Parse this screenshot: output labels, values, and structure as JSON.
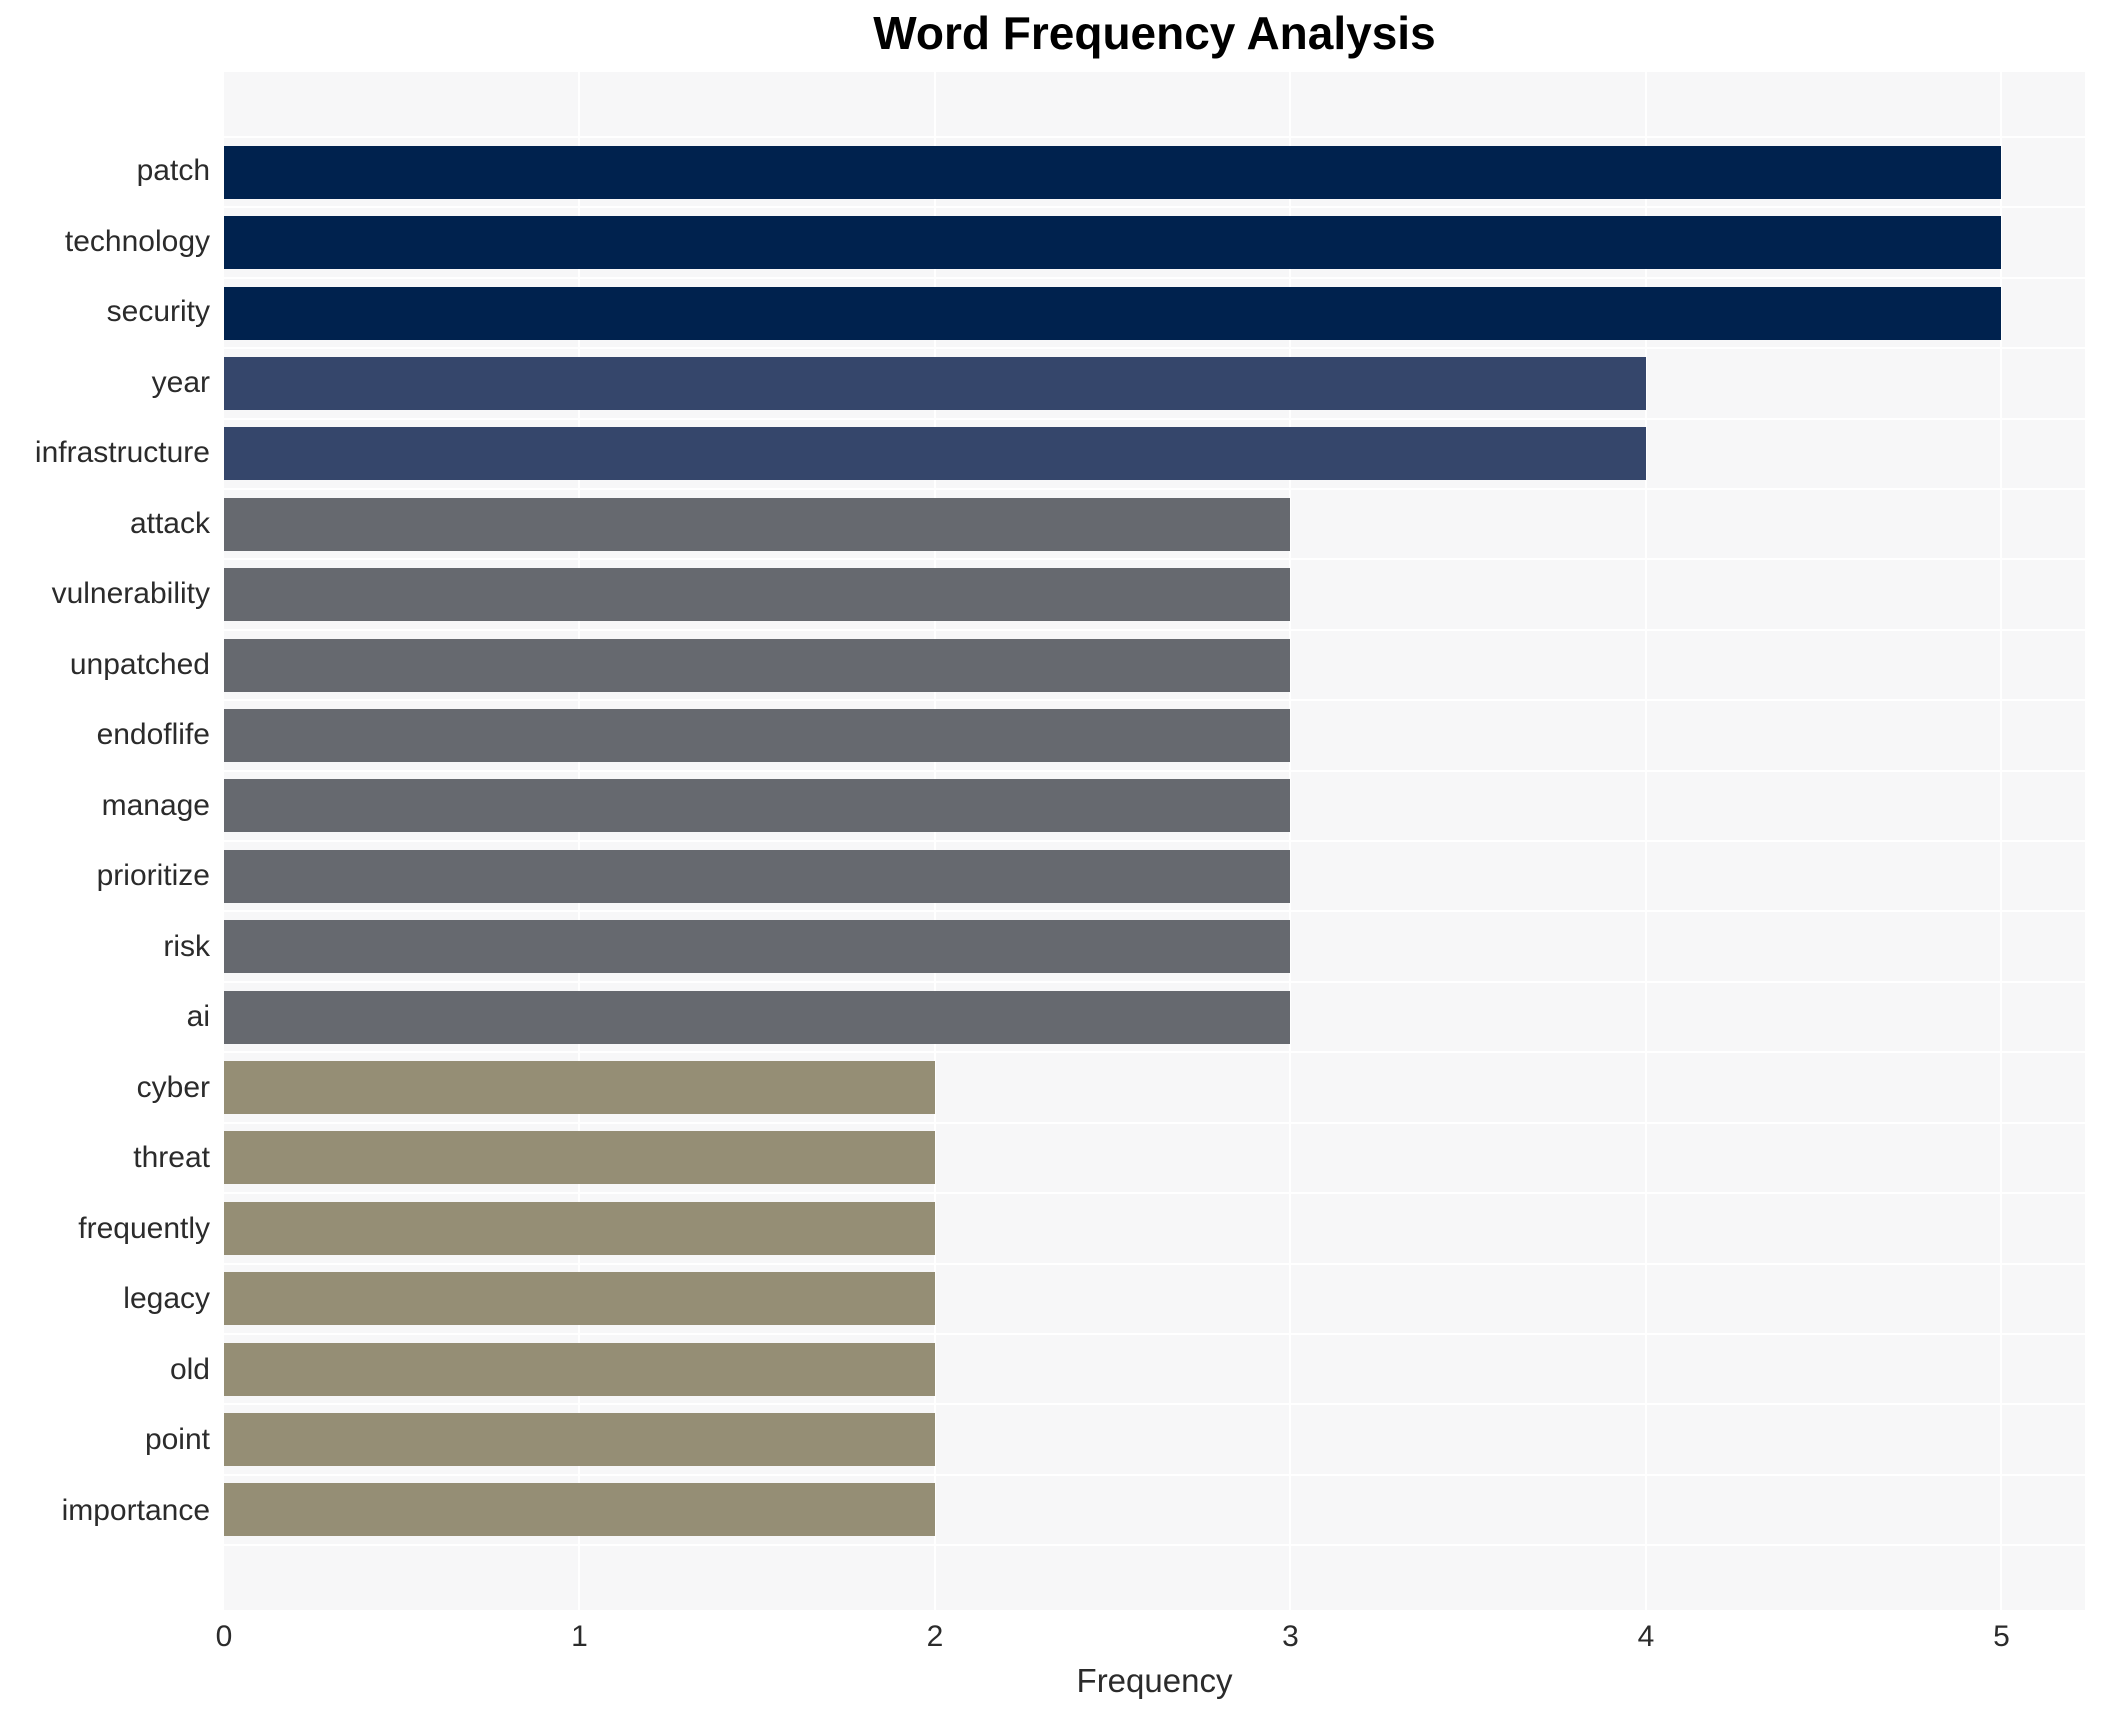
{
  "figure": {
    "title": "Word Frequency Analysis",
    "xlabel": "Frequency"
  },
  "chart_data": {
    "type": "bar",
    "orientation": "horizontal",
    "title": "Word Frequency Analysis",
    "xlabel": "Frequency",
    "ylabel": "",
    "categories": [
      "patch",
      "technology",
      "security",
      "year",
      "infrastructure",
      "attack",
      "vulnerability",
      "unpatched",
      "endoflife",
      "manage",
      "prioritize",
      "risk",
      "ai",
      "cyber",
      "threat",
      "frequently",
      "legacy",
      "old",
      "point",
      "importance"
    ],
    "values": [
      5,
      5,
      5,
      4,
      4,
      3,
      3,
      3,
      3,
      3,
      3,
      3,
      3,
      2,
      2,
      2,
      2,
      2,
      2,
      2
    ],
    "xlim": [
      0,
      5.235
    ],
    "xticks": [
      0,
      1,
      2,
      3,
      4,
      5
    ],
    "grid": true,
    "legend": false,
    "colors_by_value": {
      "5": "#00224e",
      "4": "#35466b",
      "3": "#66696f",
      "2": "#958e75"
    },
    "plot_bgcolor": "#f7f7f8",
    "gridcolor": "#ffffff",
    "text_color": "#2b2b2b"
  }
}
